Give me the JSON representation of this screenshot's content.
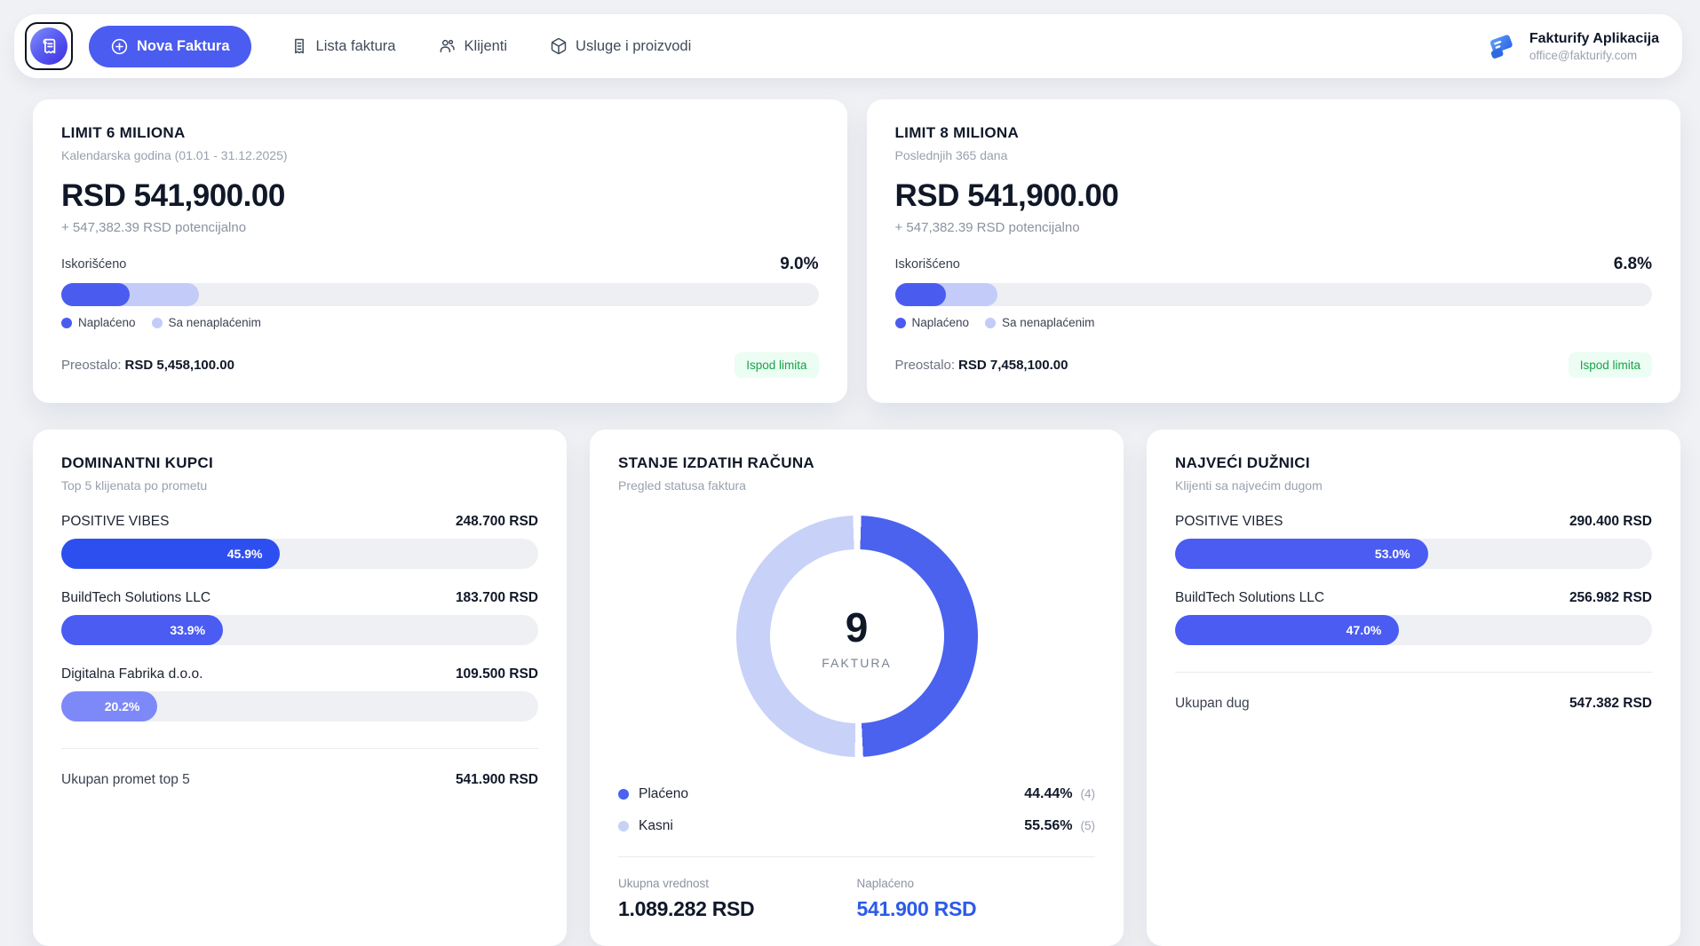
{
  "nav": {
    "new_invoice_label": "Nova Faktura",
    "items": [
      {
        "label": "Lista faktura"
      },
      {
        "label": "Klijenti"
      },
      {
        "label": "Usluge i proizvodi"
      }
    ],
    "user": {
      "name": "Fakturify Aplikacija",
      "email": "office@fakturify.com"
    }
  },
  "colors": {
    "primary": "#4b5cf0",
    "paid_blue": "#4a62ed",
    "late_light": "#c8d1f7",
    "badge_green_text": "#17a34a",
    "badge_green_bg": "#ecfdf3"
  },
  "limit_cards": [
    {
      "title": "LIMIT 6 MILIONA",
      "subtitle": "Kalendarska godina (01.01 - 31.12.2025)",
      "amount": "RSD 541,900.00",
      "potential": "+ 547,382.39 RSD potencijalno",
      "used_label": "Iskorišćeno",
      "used_pct_label": "9.0%",
      "used_pct": 9.0,
      "used_with_unpaid_pct": 18.2,
      "legend": [
        {
          "label": "Naplaćeno",
          "color": "#4a5cf0"
        },
        {
          "label": "Sa nenaplaćenim",
          "color": "#c3ccf8"
        }
      ],
      "remaining_label": "Preostalo:",
      "remaining_value": "RSD 5,458,100.00",
      "status_badge": "Ispod limita"
    },
    {
      "title": "LIMIT 8 MILIONA",
      "subtitle": "Poslednjih 365 dana",
      "amount": "RSD 541,900.00",
      "potential": "+ 547,382.39 RSD potencijalno",
      "used_label": "Iskorišćeno",
      "used_pct_label": "6.8%",
      "used_pct": 6.8,
      "used_with_unpaid_pct": 13.6,
      "legend": [
        {
          "label": "Naplaćeno",
          "color": "#4a5cf0"
        },
        {
          "label": "Sa nenaplaćenim",
          "color": "#c3ccf8"
        }
      ],
      "remaining_label": "Preostalo:",
      "remaining_value": "RSD 7,458,100.00",
      "status_badge": "Ispod limita"
    }
  ],
  "top_clients": {
    "title": "DOMINANTNI KUPCI",
    "subtitle": "Top 5 klijenata po prometu",
    "rows": [
      {
        "name": "POSITIVE VIBES",
        "amount": "248.700 RSD",
        "pct": 45.9,
        "pct_label": "45.9%",
        "color": "#2e4ff0"
      },
      {
        "name": "BuildTech Solutions LLC",
        "amount": "183.700 RSD",
        "pct": 33.9,
        "pct_label": "33.9%",
        "color": "#4a5cf2"
      },
      {
        "name": "Digitalna Fabrika d.o.o.",
        "amount": "109.500 RSD",
        "pct": 20.2,
        "pct_label": "20.2%",
        "color": "#7d89f8"
      }
    ],
    "total_label": "Ukupan promet top 5",
    "total_value": "541.900 RSD"
  },
  "invoice_status": {
    "title": "STANJE IZDATIH RAČUNA",
    "subtitle": "Pregled statusa faktura",
    "center_value": "9",
    "center_label": "FAKTURA",
    "legend": [
      {
        "label": "Plaćeno",
        "pct_label": "44.44%",
        "count_label": "(4)",
        "color": "#4a62ed"
      },
      {
        "label": "Kasni",
        "pct_label": "55.56%",
        "count_label": "(5)",
        "color": "#c8d1f7"
      }
    ],
    "footer": [
      {
        "label": "Ukupna vrednost",
        "value": "1.089.282 RSD"
      },
      {
        "label": "Naplaćeno",
        "value": "541.900 RSD"
      }
    ]
  },
  "top_debtors": {
    "title": "NAJVEĆI DUŽNICI",
    "subtitle": "Klijenti sa najvećim dugom",
    "rows": [
      {
        "name": "POSITIVE VIBES",
        "amount": "290.400 RSD",
        "pct": 53.0,
        "pct_label": "53.0%",
        "color": "#4a5cf2"
      },
      {
        "name": "BuildTech Solutions LLC",
        "amount": "256.982 RSD",
        "pct": 47.0,
        "pct_label": "47.0%",
        "color": "#4a5cf2"
      }
    ],
    "total_label": "Ukupan dug",
    "total_value": "547.382 RSD"
  },
  "chart_data": [
    {
      "type": "pie",
      "title": "STANJE IZDATIH RAČUNA",
      "series": [
        {
          "name": "Plaćeno",
          "value": 541900,
          "count": 4,
          "pct_by_count": 44.44,
          "color": "#4a62ed"
        },
        {
          "name": "Kasni",
          "value": 547382,
          "count": 5,
          "pct_by_count": 55.56,
          "color": "#c8d1f7"
        }
      ],
      "center_value": 9,
      "center_label": "FAKTURA",
      "legend_position": "bottom"
    },
    {
      "type": "bar",
      "title": "DOMINANTNI KUPCI",
      "categories": [
        "POSITIVE VIBES",
        "BuildTech Solutions LLC",
        "Digitalna Fabrika d.o.o."
      ],
      "values": [
        45.9,
        33.9,
        20.2
      ],
      "amounts_rsd": [
        248700,
        183700,
        109500
      ],
      "total_rsd": 541900,
      "xlim": [
        0,
        100
      ]
    },
    {
      "type": "bar",
      "title": "NAJVEĆI DUŽNICI",
      "categories": [
        "POSITIVE VIBES",
        "BuildTech Solutions LLC"
      ],
      "values": [
        53.0,
        47.0
      ],
      "amounts_rsd": [
        290400,
        256982
      ],
      "total_rsd": 547382,
      "xlim": [
        0,
        100
      ]
    }
  ]
}
